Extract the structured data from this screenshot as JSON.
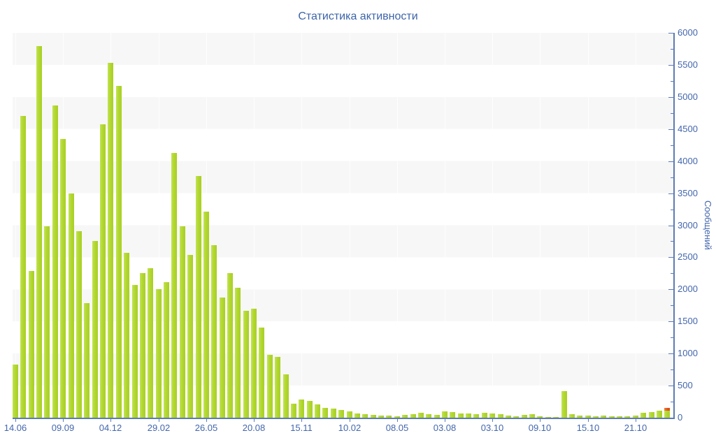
{
  "title": "Статистика активности",
  "colors": {
    "bar_green": "#b2d832",
    "bar_red": "#e5531d",
    "axis_line": "#5d7bb4",
    "tick_label": "#4366ad",
    "title_text": "#3d63a8",
    "stripe_gray": "#f7f7f7",
    "background": "#ffffff"
  },
  "chart_data": {
    "type": "bar",
    "title": "Статистика активности",
    "ylabel": "Сообщений",
    "xlabel": "",
    "ylim": [
      0,
      6000
    ],
    "y_tick_interval": 500,
    "y_minor_tick_interval": 250,
    "y_tick_labels": [
      "0",
      "500",
      "1000",
      "1500",
      "2000",
      "2500",
      "3000",
      "3500",
      "4000",
      "4500",
      "5000",
      "5500",
      "6000"
    ],
    "y_axis_side": "right",
    "grid": "alternating horizontal gray/white bands every 500, faint white vertical lines at x ticks",
    "legend": "none",
    "x_tick_labels": [
      "14.06",
      "09.09",
      "04.12",
      "29.02",
      "26.05",
      "20.08",
      "15.11",
      "10.02",
      "08.05",
      "03.08",
      "03.10",
      "09.10",
      "15.10",
      "21.10"
    ],
    "x_tick_bar_indices": [
      0,
      6,
      12,
      18,
      24,
      30,
      36,
      42,
      48,
      54,
      60,
      66,
      72,
      78
    ],
    "values": [
      830,
      4700,
      2290,
      5790,
      2980,
      4870,
      4350,
      3500,
      2910,
      1790,
      2760,
      4570,
      5530,
      5170,
      2570,
      2070,
      2250,
      2330,
      2000,
      2110,
      4130,
      2980,
      2540,
      3770,
      3210,
      2690,
      1870,
      2250,
      2030,
      1670,
      1700,
      1400,
      980,
      950,
      670,
      220,
      280,
      265,
      210,
      150,
      145,
      115,
      95,
      70,
      55,
      45,
      35,
      30,
      25,
      45,
      55,
      80,
      55,
      40,
      100,
      90,
      70,
      60,
      55,
      75,
      70,
      55,
      35,
      25,
      45,
      50,
      20,
      15,
      10,
      410,
      50,
      30,
      30,
      25,
      30,
      20,
      25,
      25,
      30,
      80,
      85,
      105,
      150
    ],
    "last_bar_stack": {
      "green": 105,
      "red": 45
    },
    "series_note": "single green series; final bar has red top segment"
  }
}
